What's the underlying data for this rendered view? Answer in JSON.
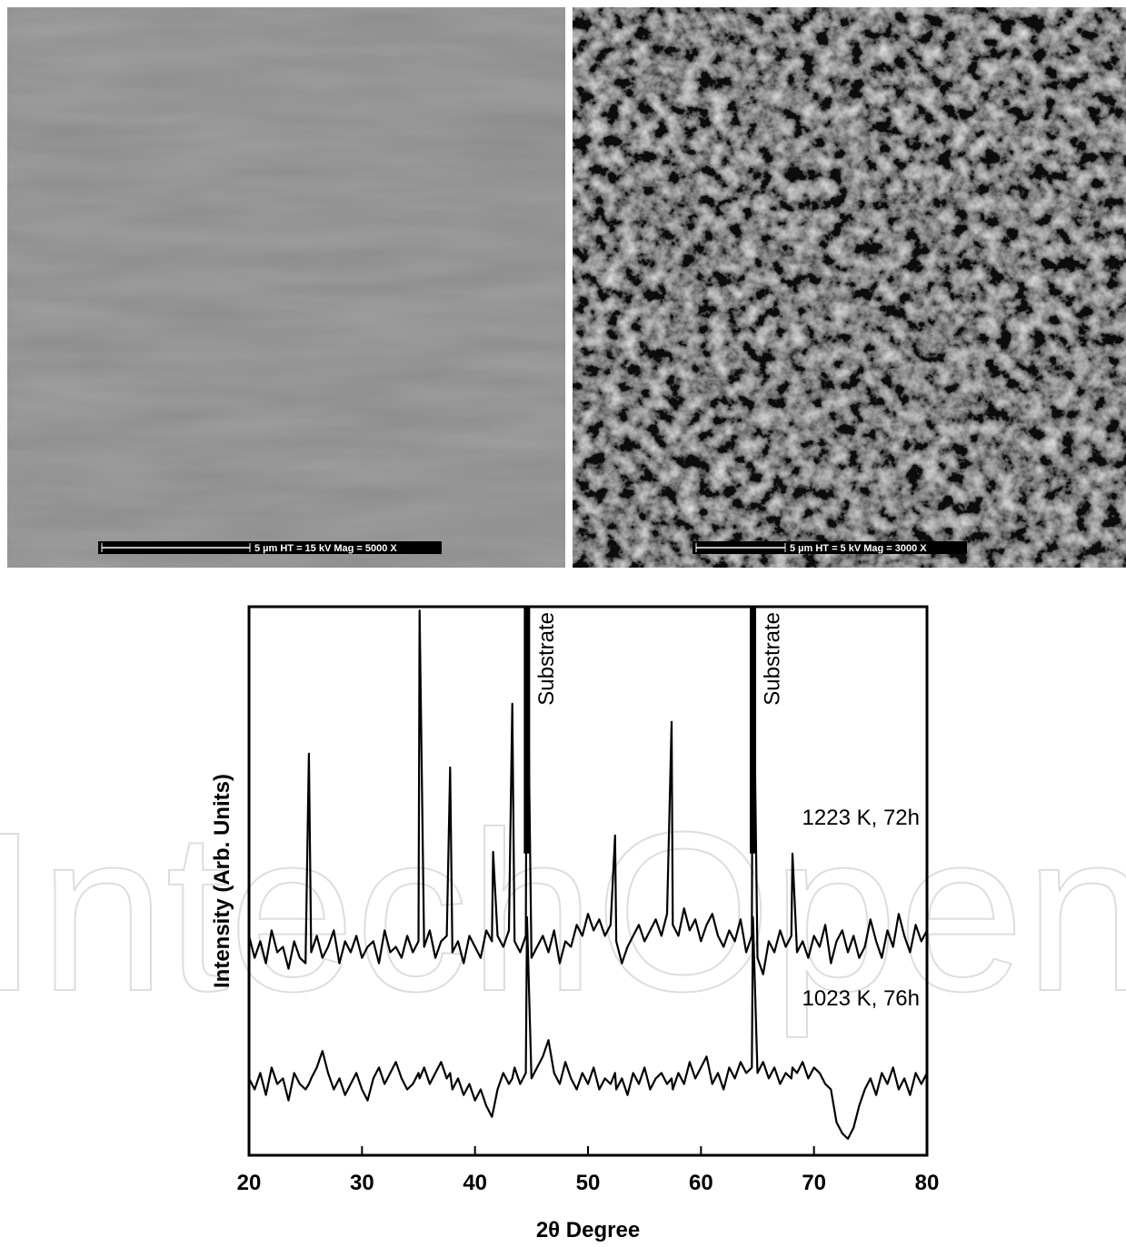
{
  "images": [
    {
      "caption": "5 µm  HT = 15 kV  Mag = 5000 X"
    },
    {
      "caption": "5 µm  HT = 5 kV  Mag = 3000 X"
    }
  ],
  "watermark": "IntechOpen",
  "chart_data": {
    "type": "line",
    "x_label": "2θ Degree",
    "y_label": "Intensity (Arb. Units)",
    "xlim": [
      20,
      80
    ],
    "xticks": [
      20,
      30,
      40,
      50,
      60,
      70,
      80
    ],
    "ylim": [
      0,
      100
    ],
    "yticks": [],
    "annotations": [
      {
        "text": "Substrate",
        "x": 44.6
      },
      {
        "text": "Substrate",
        "x": 64.6
      }
    ],
    "x": [
      20,
      20.5,
      21,
      21.5,
      22,
      22.5,
      23,
      23.5,
      24,
      24.5,
      25,
      25.3,
      25.5,
      26,
      26.5,
      27,
      27.5,
      28,
      28.5,
      29,
      29.5,
      30,
      30.5,
      31,
      31.5,
      32,
      32.5,
      33,
      33.5,
      34,
      34.5,
      35,
      35.1,
      35.5,
      36,
      36.5,
      37,
      37.5,
      37.8,
      38,
      38.5,
      39,
      39.5,
      40,
      40.5,
      41,
      41.5,
      41.6,
      42,
      42.5,
      43,
      43.3,
      43.5,
      44,
      44.5,
      44.6,
      45,
      45.5,
      46,
      46.5,
      47,
      47.5,
      48,
      48.5,
      49,
      49.5,
      50,
      50.5,
      51,
      51.5,
      52,
      52.4,
      52.5,
      53,
      53.5,
      54,
      54.5,
      55,
      55.5,
      56,
      56.5,
      57,
      57.4,
      57.5,
      58,
      58.5,
      59,
      59.5,
      60,
      60.5,
      61,
      61.5,
      62,
      62.5,
      63,
      63.5,
      64,
      64.5,
      64.6,
      65,
      65.5,
      66,
      66.5,
      67,
      67.5,
      68,
      68.1,
      68.5,
      69,
      69.5,
      70,
      70.5,
      71,
      71.5,
      72,
      72.5,
      73,
      73.5,
      74,
      74.5,
      75,
      75.5,
      76,
      76.5,
      77,
      77.5,
      78,
      78.5,
      79,
      79.5,
      80
    ],
    "series": [
      {
        "name": "1223 K, 72h",
        "color": "#000000",
        "values": [
          40,
          36,
          39,
          35,
          41,
          37,
          38,
          34,
          39,
          36,
          35,
          73.2,
          37,
          40,
          36,
          38,
          41,
          35,
          39,
          37,
          40,
          36,
          38,
          39,
          35,
          41,
          37,
          38,
          36,
          40,
          37,
          39,
          99.3,
          38,
          41,
          36,
          39,
          40,
          70.7,
          37,
          39,
          35,
          40,
          38,
          36,
          41,
          39,
          55.3,
          40,
          38,
          41,
          82.3,
          39,
          37,
          40,
          100,
          36,
          38,
          40,
          37,
          41,
          35,
          39,
          38,
          42,
          40,
          44,
          41,
          43,
          40,
          42,
          58.3,
          39,
          35,
          38,
          40,
          42,
          39,
          41,
          43,
          40,
          44,
          79.0,
          42,
          40,
          45,
          41,
          43,
          39,
          42,
          44,
          40,
          38,
          41,
          39,
          43,
          37,
          40,
          100,
          36,
          33,
          39,
          37,
          41,
          38,
          40,
          55.0,
          37,
          39,
          36,
          40,
          38,
          42,
          35,
          39,
          41,
          37,
          40,
          36,
          38,
          43,
          39,
          36,
          41,
          38,
          44,
          40,
          37,
          42,
          39,
          41
        ]
      },
      {
        "name": "1023 K, 76h",
        "color": "#000000",
        "values": [
          14,
          12,
          15,
          11,
          16,
          13,
          14,
          10,
          15,
          13,
          12,
          13,
          14,
          16,
          19,
          15,
          12,
          14,
          11,
          13,
          15,
          12,
          10,
          14,
          16,
          13,
          15,
          17,
          14,
          12,
          13,
          15,
          14,
          16,
          13,
          15,
          17,
          14,
          15,
          12,
          14,
          11,
          13,
          10,
          12,
          9,
          7,
          8,
          12,
          15,
          13,
          14,
          16,
          13,
          15,
          43.4,
          14,
          16,
          18,
          21,
          15,
          13,
          17,
          14,
          12,
          15,
          13,
          16,
          12,
          14,
          13,
          15,
          12,
          14,
          11,
          15,
          13,
          16,
          12,
          14,
          15,
          13,
          14,
          12,
          15,
          13,
          17,
          14,
          16,
          18,
          13,
          15,
          12,
          16,
          14,
          17,
          15,
          16,
          43.4,
          15,
          17,
          14,
          16,
          13,
          15,
          14,
          16,
          15,
          17,
          14,
          16,
          15,
          13,
          12,
          6,
          4,
          3,
          5,
          9,
          12,
          14,
          11,
          15,
          13,
          16,
          12,
          14,
          11,
          15,
          13,
          15
        ]
      }
    ]
  }
}
